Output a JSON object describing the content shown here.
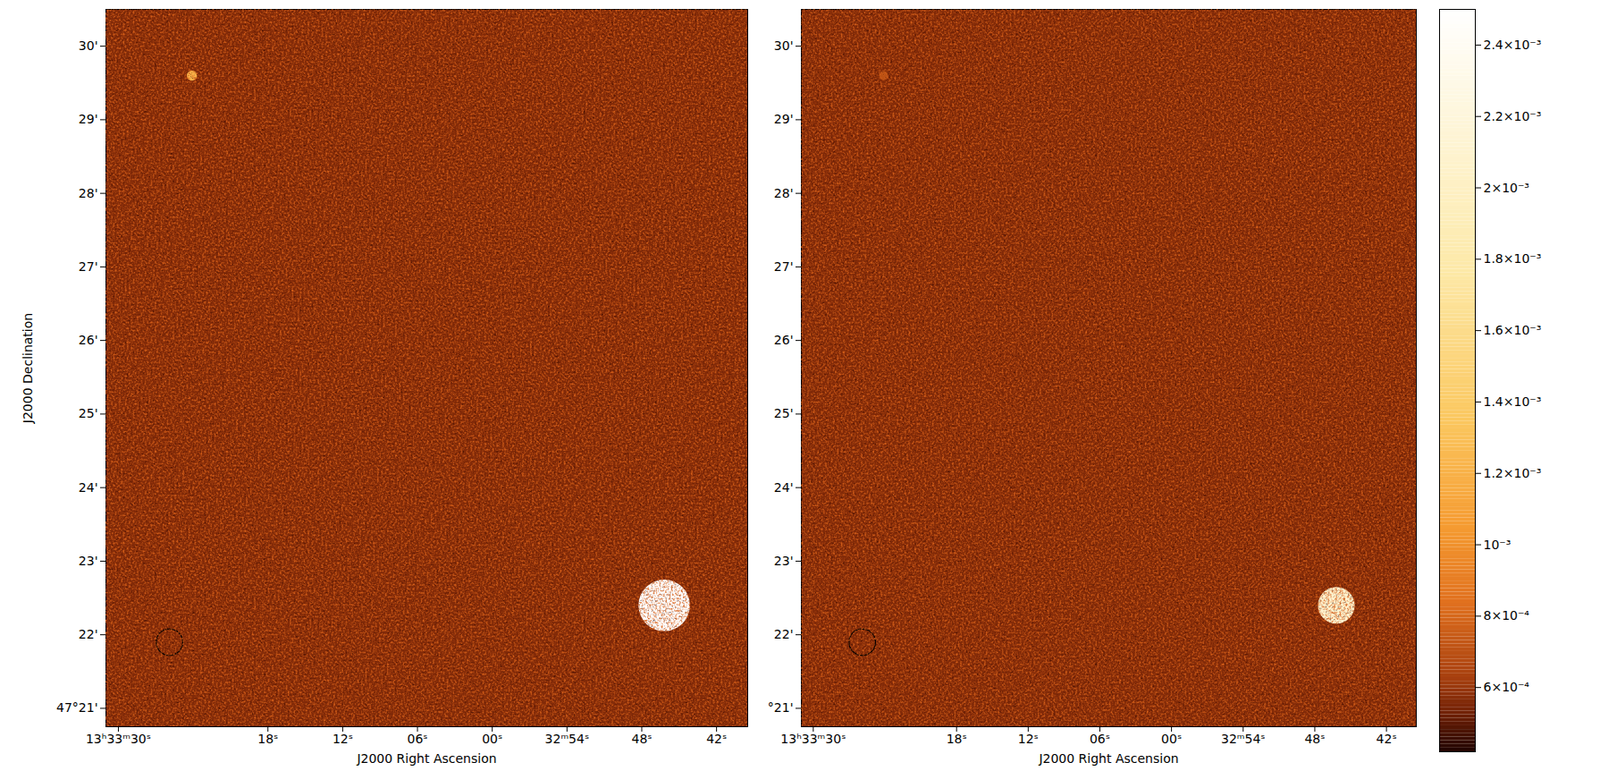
{
  "chart_data": [
    {
      "type": "heatmap",
      "x_label": "J2000 Right Ascension",
      "y_label": "J2000 Declination",
      "xlim": [
        91,
        39.5
      ],
      "xticks": [
        {
          "value": 90,
          "label": "13ʰ33ᵐ30ˢ"
        },
        {
          "value": 78,
          "label": "18ˢ"
        },
        {
          "value": 72,
          "label": "12ˢ"
        },
        {
          "value": 66,
          "label": "06ˢ"
        },
        {
          "value": 60,
          "label": "00ˢ"
        },
        {
          "value": 54,
          "label": "32ᵐ54ˢ"
        },
        {
          "value": 48,
          "label": "48ˢ"
        },
        {
          "value": 42,
          "label": "42ˢ"
        }
      ],
      "ylim": [
        20.75,
        30.5
      ],
      "yticks": [
        {
          "value": 21,
          "label": "47°21'"
        },
        {
          "value": 22,
          "label": "22'"
        },
        {
          "value": 23,
          "label": "23'"
        },
        {
          "value": 24,
          "label": "24'"
        },
        {
          "value": 25,
          "label": "25'"
        },
        {
          "value": 26,
          "label": "26'"
        },
        {
          "value": 27,
          "label": "27'"
        },
        {
          "value": 28,
          "label": "28'"
        },
        {
          "value": 29,
          "label": "29'"
        },
        {
          "value": 30,
          "label": "30'"
        }
      ],
      "background": 0.00056,
      "sources": [
        {
          "ra": 84.1,
          "dec": 29.6,
          "peak": 0.0012,
          "size": 0.14
        },
        {
          "ra": 46.2,
          "dec": 22.4,
          "peak": 0.0025,
          "size": 0.7
        }
      ],
      "beam": {
        "ra": 85.9,
        "dec": 21.9,
        "diameter": 0.36
      }
    },
    {
      "type": "heatmap",
      "x_label": "J2000 Right Ascension",
      "xlim": [
        91,
        39.5
      ],
      "xticks": [
        {
          "value": 90,
          "label": "13ʰ33ᵐ30ˢ"
        },
        {
          "value": 78,
          "label": "18ˢ"
        },
        {
          "value": 72,
          "label": "12ˢ"
        },
        {
          "value": 66,
          "label": "06ˢ"
        },
        {
          "value": 60,
          "label": "00ˢ"
        },
        {
          "value": 54,
          "label": "32ᵐ54ˢ"
        },
        {
          "value": 48,
          "label": "48ˢ"
        },
        {
          "value": 42,
          "label": "42ˢ"
        }
      ],
      "ylim": [
        20.75,
        30.5
      ],
      "yticks": [
        {
          "value": 21,
          "label": "°21'"
        },
        {
          "value": 22,
          "label": "22'"
        },
        {
          "value": 23,
          "label": "23'"
        },
        {
          "value": 24,
          "label": "24'"
        },
        {
          "value": 25,
          "label": "25'"
        },
        {
          "value": 26,
          "label": "26'"
        },
        {
          "value": 27,
          "label": "27'"
        },
        {
          "value": 28,
          "label": "28'"
        },
        {
          "value": 29,
          "label": "29'"
        },
        {
          "value": 30,
          "label": "30'"
        }
      ],
      "background": 0.00056,
      "sources": [
        {
          "ra": 84.1,
          "dec": 29.6,
          "peak": 0.0007,
          "size": 0.12
        },
        {
          "ra": 46.2,
          "dec": 22.4,
          "peak": 0.0021,
          "size": 0.5
        }
      ],
      "beam": {
        "ra": 85.9,
        "dec": 21.9,
        "diameter": 0.36
      },
      "colorbar": {
        "range": [
          0.00042,
          0.0025
        ],
        "ticks": [
          {
            "value": 0.0006,
            "label": "6×10⁻⁴"
          },
          {
            "value": 0.0008,
            "label": "8×10⁻⁴"
          },
          {
            "value": 0.001,
            "label": "10⁻³"
          },
          {
            "value": 0.0012,
            "label": "1.2×10⁻³"
          },
          {
            "value": 0.0014,
            "label": "1.4×10⁻³"
          },
          {
            "value": 0.0016,
            "label": "1.6×10⁻³"
          },
          {
            "value": 0.0018,
            "label": "1.8×10⁻³"
          },
          {
            "value": 0.002,
            "label": "2×10⁻³"
          },
          {
            "value": 0.0022,
            "label": "2.2×10⁻³"
          },
          {
            "value": 0.0024,
            "label": "2.4×10⁻³"
          }
        ]
      }
    }
  ]
}
